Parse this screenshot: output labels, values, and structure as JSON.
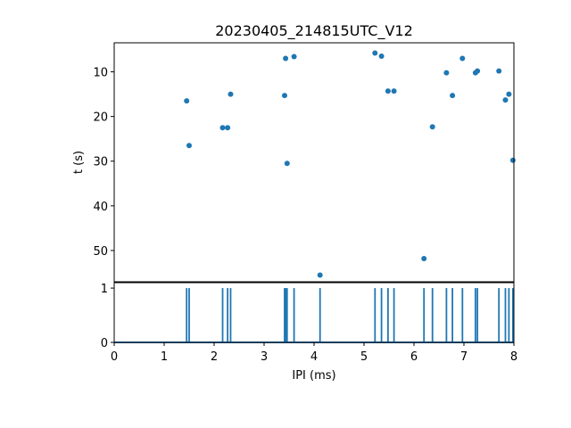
{
  "chart_data": [
    {
      "type": "scatter",
      "title": "20230405_214815UTC_V12",
      "xlabel": "",
      "ylabel": "t (s)",
      "xlim": [
        0,
        8
      ],
      "ylim": [
        57,
        3.5
      ],
      "y_inverted": true,
      "yticks": [
        10,
        20,
        30,
        40,
        50
      ],
      "color": "#1f77b4",
      "points": [
        {
          "x": 1.45,
          "y": 16.5
        },
        {
          "x": 1.5,
          "y": 26.5
        },
        {
          "x": 2.17,
          "y": 22.5
        },
        {
          "x": 2.27,
          "y": 22.5
        },
        {
          "x": 2.33,
          "y": 15.0
        },
        {
          "x": 3.41,
          "y": 15.3
        },
        {
          "x": 3.43,
          "y": 7.0
        },
        {
          "x": 3.46,
          "y": 30.5
        },
        {
          "x": 3.6,
          "y": 6.6
        },
        {
          "x": 4.12,
          "y": 55.5
        },
        {
          "x": 5.22,
          "y": 5.8
        },
        {
          "x": 5.35,
          "y": 6.5
        },
        {
          "x": 5.48,
          "y": 14.3
        },
        {
          "x": 5.6,
          "y": 14.3
        },
        {
          "x": 6.2,
          "y": 51.8
        },
        {
          "x": 6.37,
          "y": 22.3
        },
        {
          "x": 6.65,
          "y": 10.2
        },
        {
          "x": 6.77,
          "y": 15.3
        },
        {
          "x": 6.97,
          "y": 7.0
        },
        {
          "x": 7.23,
          "y": 10.2
        },
        {
          "x": 7.27,
          "y": 9.8
        },
        {
          "x": 7.7,
          "y": 9.8
        },
        {
          "x": 7.83,
          "y": 16.3
        },
        {
          "x": 7.9,
          "y": 15.0
        },
        {
          "x": 7.98,
          "y": 29.8
        }
      ]
    },
    {
      "type": "line",
      "title": "",
      "xlabel": "IPI (ms)",
      "ylabel": "",
      "xlim": [
        0,
        8
      ],
      "ylim": [
        0,
        1.1
      ],
      "xticks": [
        0,
        1,
        2,
        3,
        4,
        5,
        6,
        7,
        8
      ],
      "yticks": [
        0,
        1
      ],
      "color": "#1f77b4",
      "spikes_at": [
        1.45,
        1.5,
        2.17,
        2.27,
        2.33,
        3.41,
        3.43,
        3.46,
        3.6,
        4.12,
        5.22,
        5.35,
        5.48,
        5.6,
        6.2,
        6.37,
        6.65,
        6.77,
        6.97,
        7.23,
        7.27,
        7.7,
        7.83,
        7.9,
        7.98
      ],
      "spike_value": 1
    }
  ]
}
